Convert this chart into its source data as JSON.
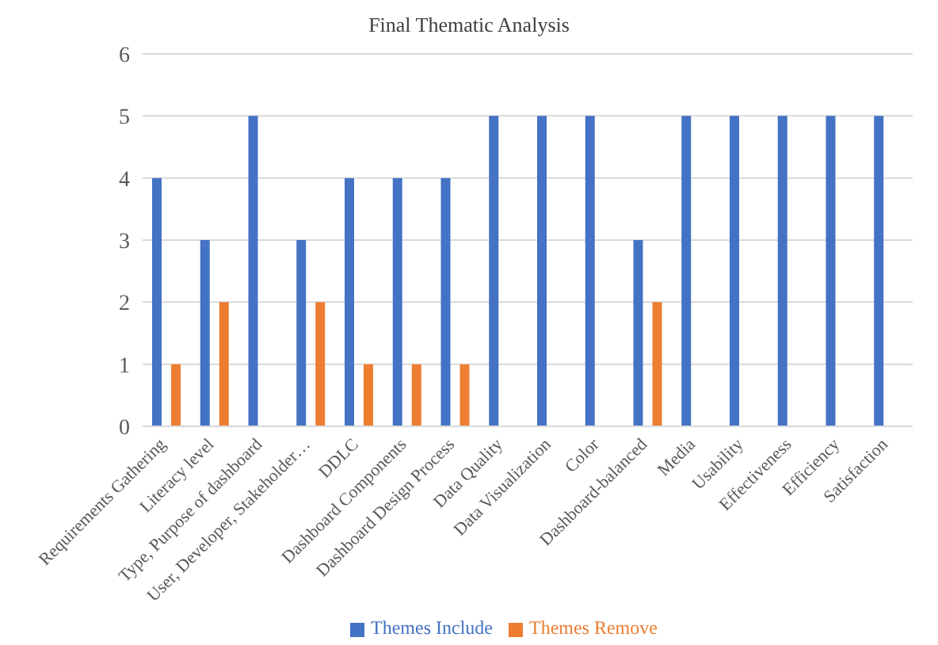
{
  "chart_data": {
    "type": "bar",
    "title": "Final Thematic Analysis",
    "categories": [
      "Requirements Gathering",
      "Literacy level",
      "Type, Purpose of dashboard",
      "User, Developer, Stakeholder…",
      "DDLC",
      "Dashboard Components",
      "Dashboard Design Process",
      "Data Quality",
      "Data Visualization",
      "Color",
      "Dashboard-balanced",
      "Media",
      "Usability",
      "Effectiveness",
      "Efficiency",
      "Satisfaction"
    ],
    "series": [
      {
        "name": "Themes Include",
        "color": "#4472c4",
        "values": [
          4,
          3,
          5,
          3,
          4,
          4,
          4,
          5,
          5,
          5,
          3,
          5,
          5,
          5,
          5,
          5
        ]
      },
      {
        "name": "Themes Remove",
        "color": "#ed7d31",
        "values": [
          1,
          2,
          null,
          2,
          1,
          1,
          1,
          null,
          null,
          null,
          2,
          null,
          null,
          null,
          null,
          null
        ]
      }
    ],
    "ylim": [
      0,
      6
    ],
    "yticks": [
      0,
      1,
      2,
      3,
      4,
      5,
      6
    ],
    "grid": "y",
    "legend": "bottom"
  }
}
